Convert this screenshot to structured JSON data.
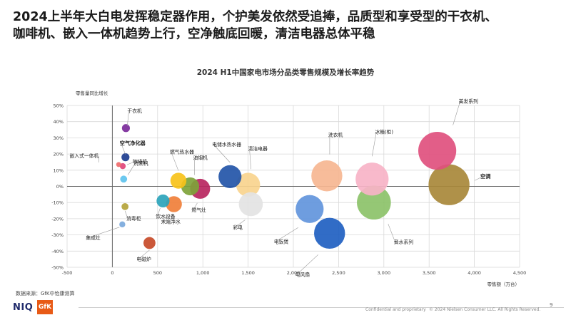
{
  "headline_line1": "2024上半年大白电发挥稳定器作用，个护美发依然受追捧，品质型和享受型的干衣机、",
  "headline_line2": "咖啡机、嵌入一体机趋势上行，空净触底回暖，清洁电器总体平稳",
  "footer": {
    "source": "数据来源：GfK中怡康测算",
    "brand_niq": "NIQ",
    "brand_gfk": "GfK",
    "confidential": "Confidential and proprietary",
    "copyright": "© 2024 Nielsen Consumer LLC. All Rights Reserved.",
    "page_number": "9"
  },
  "chart_data": {
    "type": "scatter",
    "title": "2024 H1中国家电市场分品类零售规模及增长率趋势",
    "xlabel": "零售额（万台）",
    "ylabel": "零售量同比增长",
    "xlim": [
      -500,
      4500
    ],
    "ylim": [
      -50,
      50
    ],
    "x_ticks": [
      -500,
      0,
      500,
      1000,
      1500,
      2000,
      2500,
      3000,
      3500,
      4000,
      4500
    ],
    "x_tick_labels": [
      "-500",
      "0",
      "500",
      "1,000",
      "1,500",
      "2,000",
      "2,500",
      "3,000",
      "3,500",
      "4,000",
      "4,500"
    ],
    "y_ticks": [
      -50,
      -40,
      -30,
      -20,
      -10,
      0,
      10,
      20,
      30,
      40,
      50
    ],
    "y_tick_labels": [
      "-50%",
      "-40%",
      "-30%",
      "-20%",
      "-10%",
      "0%",
      "10%",
      "20%",
      "30%",
      "40%",
      "50%"
    ],
    "grid": true,
    "points": [
      {
        "name": "干衣机",
        "x": 150,
        "y": 36,
        "size": 8,
        "color": "#7b2a9a",
        "bold": false
      },
      {
        "name": "空气净化器",
        "x": 145,
        "y": 18,
        "size": 8,
        "color": "#1d3d8f",
        "bold": true
      },
      {
        "name": "嵌入式一体机",
        "x": 70,
        "y": 13.5,
        "size": 5,
        "color": "#ef6b6b",
        "bold": false
      },
      {
        "name": "咖啡机",
        "x": 115,
        "y": 12.5,
        "size": 6,
        "color": "#e0457b",
        "bold": false
      },
      {
        "name": "洗碗机",
        "x": 125,
        "y": 4.5,
        "size": 7,
        "color": "#5ec3ee",
        "bold": false
      },
      {
        "name": "燃气热水器",
        "x": 730,
        "y": 3.5,
        "size": 16,
        "color": "#f7c21a",
        "bold": false
      },
      {
        "name": "油烟机",
        "x": 860,
        "y": 0,
        "size": 18,
        "color": "#7ea33a",
        "bold": false
      },
      {
        "name": "燃气灶",
        "x": 970,
        "y": -1.5,
        "size": 20,
        "color": "#b9265f",
        "bold": false
      },
      {
        "name": "饮水设备",
        "x": 560,
        "y": -9,
        "size": 13,
        "color": "#2ba4bb",
        "bold": false
      },
      {
        "name": "末端净水",
        "x": 680,
        "y": -11,
        "size": 16,
        "color": "#f07f3a",
        "bold": false
      },
      {
        "name": "电储水热水器",
        "x": 1300,
        "y": 6,
        "size": 23,
        "color": "#2355a8",
        "bold": false
      },
      {
        "name": "清洁电器",
        "x": 1500,
        "y": 1,
        "size": 24,
        "color": "#f8d48e",
        "bold": false
      },
      {
        "name": "彩电",
        "x": 1530,
        "y": -11,
        "size": 24,
        "color": "#e3e3e3",
        "bold": false
      },
      {
        "name": "消毒柜",
        "x": 140,
        "y": -12.5,
        "size": 7,
        "color": "#b4a33a",
        "bold": false
      },
      {
        "name": "集成灶",
        "x": 110,
        "y": -23.5,
        "size": 6,
        "color": "#7ba9dc",
        "bold": false
      },
      {
        "name": "电磁炉",
        "x": 410,
        "y": -35,
        "size": 12,
        "color": "#c74a28",
        "bold": false
      },
      {
        "name": "洗衣机",
        "x": 2370,
        "y": 6.5,
        "size": 31,
        "color": "#f6b691",
        "bold": false
      },
      {
        "name": "电饭煲",
        "x": 2180,
        "y": -14,
        "size": 28,
        "color": "#6295dc",
        "bold": false
      },
      {
        "name": "电风扇",
        "x": 2400,
        "y": -29,
        "size": 31,
        "color": "#1f5fc1",
        "bold": false
      },
      {
        "name": "冰箱(柜)",
        "x": 2870,
        "y": 4.5,
        "size": 33,
        "color": "#f7b3c7",
        "bold": false
      },
      {
        "name": "煮水系列",
        "x": 2890,
        "y": -10,
        "size": 34,
        "color": "#8cc269",
        "bold": false
      },
      {
        "name": "美发系列",
        "x": 3590,
        "y": 22,
        "size": 38,
        "color": "#e0507e",
        "bold": false
      },
      {
        "name": "空调",
        "x": 3720,
        "y": 1,
        "size": 41,
        "color": "#a8883a",
        "bold": true
      }
    ]
  },
  "colors": {
    "grid": "#d9d9d9",
    "axis": "#666666",
    "label_line": "#9a9a9a"
  }
}
